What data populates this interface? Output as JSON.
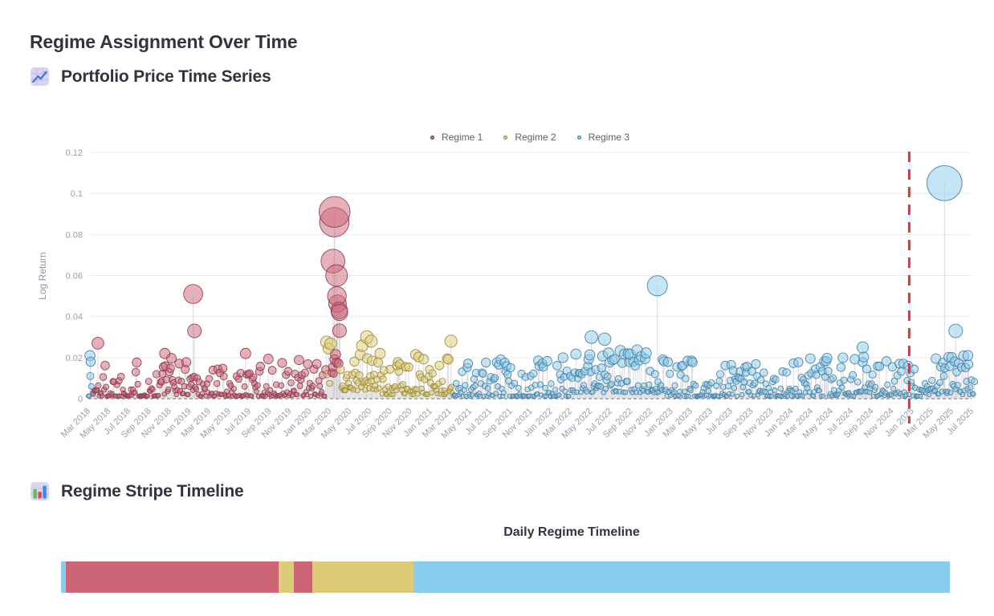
{
  "page": {
    "title": "Regime Assignment Over Time"
  },
  "sections": [
    {
      "heading": "Portfolio Price Time Series",
      "icon": "chart-increasing"
    },
    {
      "heading": "Regime Stripe Timeline",
      "icon": "bar-chart"
    }
  ],
  "colors": {
    "regime1": "#CC6677",
    "regime2": "#DDCC77",
    "regime3": "#88CCEE",
    "split_line": "#F42C2C",
    "heading_text": "#31333F",
    "axis_text": "#9A9CA9"
  },
  "chart_data": [
    {
      "type": "scatter",
      "title": "Portfolio Price Time Series",
      "ylabel": "Log Return",
      "xlabel": "",
      "grid": true,
      "legend_position": "top-center",
      "legend": [
        "Regime 1",
        "Regime 2",
        "Regime 3"
      ],
      "y_ticks": [
        0,
        0.02,
        0.04,
        0.06,
        0.08,
        0.1,
        0.12
      ],
      "y_tick_labels": [
        "0",
        "0.02",
        "0.04",
        "0.06",
        "0.08",
        "0.1",
        "0.12"
      ],
      "ylim": [
        0,
        0.125
      ],
      "x_ticks": [
        "Mar 2018",
        "May 2018",
        "Jul 2018",
        "Sep 2018",
        "Nov 2018",
        "Jan 2019",
        "Mar 2019",
        "May 2019",
        "Jul 2019",
        "Sep 2019",
        "Nov 2019",
        "Jan 2020",
        "Mar 2020",
        "May 2020",
        "Jul 2020",
        "Sep 2020",
        "Nov 2020",
        "Jan 2021",
        "Mar 2021",
        "May 2021",
        "Jul 2021",
        "Sep 2021",
        "Nov 2021",
        "Jan 2022",
        "Mar 2022",
        "May 2022",
        "Jul 2022",
        "Sep 2022",
        "Nov 2022",
        "Jan 2023",
        "Mar 2023",
        "May 2023",
        "Jul 2023",
        "Sep 2023",
        "Nov 2023",
        "Jan 2024",
        "Mar 2024",
        "May 2024",
        "Jul 2024",
        "Sep 2024",
        "Nov 2024",
        "Jan 2025",
        "Mar 2025",
        "May 2025",
        "Jul 2025"
      ],
      "x_range": [
        "2018-03-01",
        "2025-07-10"
      ],
      "x_axis": {
        "first_tick": "2018-03-01",
        "last_tick": "2025-07-01"
      },
      "series": [
        {
          "name": "Regime 1",
          "color": "#CC6677",
          "stroke": "#8E3B50"
        },
        {
          "name": "Regime 2",
          "color": "#DDCC77",
          "stroke": "#9C8C3A"
        },
        {
          "name": "Regime 3",
          "color": "#88CCEE",
          "stroke": "#4E7E9E"
        }
      ],
      "marker": {
        "shape": "circle",
        "size_by": "value",
        "fill_opacity": 0.5
      },
      "stem_lines": true,
      "zero_line": {
        "y": 0,
        "style": "dashed",
        "color": "#4A4B52"
      },
      "split_line": {
        "date": "2024-12-24",
        "style": "dashed",
        "color": "#F42C2C"
      },
      "regime_segments": [
        {
          "regime": 3,
          "start": "2018-03-01",
          "end": "2018-03-14"
        },
        {
          "regime": 1,
          "start": "2018-03-14",
          "end": "2020-02-21"
        },
        {
          "regime": 2,
          "start": "2020-02-21",
          "end": "2020-03-06"
        },
        {
          "regime": 1,
          "start": "2020-03-06",
          "end": "2020-04-03"
        },
        {
          "regime": 2,
          "start": "2020-04-03",
          "end": "2021-03-10"
        },
        {
          "regime": 3,
          "start": "2021-03-10",
          "end": "2025-07-10"
        }
      ],
      "baseline": {
        "min": 0.0012,
        "max": 0.02
      },
      "volatility_windows": [
        {
          "start": "2018-10-01",
          "end": "2019-01-31",
          "min": 0.002,
          "max": 0.021
        },
        {
          "start": "2020-02-21",
          "end": "2020-03-06",
          "min": 0.004,
          "max": 0.028
        },
        {
          "start": "2020-03-06",
          "end": "2020-04-03",
          "min": 0.012,
          "max": 0.048
        },
        {
          "start": "2020-04-03",
          "end": "2020-08-01",
          "min": 0.004,
          "max": 0.026
        },
        {
          "start": "2020-08-01",
          "end": "2021-03-10",
          "min": 0.002,
          "max": 0.022
        },
        {
          "start": "2022-03-01",
          "end": "2022-12-20",
          "min": 0.003,
          "max": 0.025
        },
        {
          "start": "2024-07-15",
          "end": "2024-09-05",
          "min": 0.003,
          "max": 0.022
        },
        {
          "start": "2025-03-01",
          "end": "2025-07-10",
          "min": 0.002,
          "max": 0.022
        }
      ],
      "spikes": [
        {
          "date": "2018-03-06",
          "value": 0.021,
          "regime": 3
        },
        {
          "date": "2018-03-08",
          "value": 0.018,
          "regime": 3
        },
        {
          "date": "2018-03-30",
          "value": 0.027,
          "regime": 1
        },
        {
          "date": "2018-10-19",
          "value": 0.022,
          "regime": 1
        },
        {
          "date": "2019-01-13",
          "value": 0.051,
          "regime": 1
        },
        {
          "date": "2019-01-17",
          "value": 0.033,
          "regime": 1
        },
        {
          "date": "2019-06-21",
          "value": 0.022,
          "regime": 1
        },
        {
          "date": "2020-03-12",
          "value": 0.067,
          "regime": 1
        },
        {
          "date": "2020-03-16",
          "value": 0.086,
          "regime": 1
        },
        {
          "date": "2020-03-17",
          "value": 0.091,
          "regime": 1
        },
        {
          "date": "2020-03-23",
          "value": 0.06,
          "regime": 1
        },
        {
          "date": "2020-03-24",
          "value": 0.05,
          "regime": 1
        },
        {
          "date": "2020-03-31",
          "value": 0.043,
          "regime": 1
        },
        {
          "date": "2020-04-01",
          "value": 0.042,
          "regime": 1
        },
        {
          "date": "2020-06-23",
          "value": 0.03,
          "regime": 2
        },
        {
          "date": "2020-07-06",
          "value": 0.028,
          "regime": 2
        },
        {
          "date": "2021-03-05",
          "value": 0.028,
          "regime": 2
        },
        {
          "date": "2022-05-05",
          "value": 0.03,
          "regime": 3
        },
        {
          "date": "2022-06-14",
          "value": 0.029,
          "regime": 3
        },
        {
          "date": "2022-11-21",
          "value": 0.055,
          "regime": 3
        },
        {
          "date": "2024-08-05",
          "value": 0.025,
          "regime": 3
        },
        {
          "date": "2025-04-10",
          "value": 0.105,
          "regime": 3
        },
        {
          "date": "2025-05-14",
          "value": 0.033,
          "regime": 3
        },
        {
          "date": "2025-06-20",
          "value": 0.021,
          "regime": 3
        }
      ]
    },
    {
      "type": "timeline-stripe",
      "title": "Daily Regime Timeline",
      "segments": [
        {
          "regime": 3,
          "fraction": 0.005
        },
        {
          "regime": 1,
          "fraction": 0.24
        },
        {
          "regime": 2,
          "fraction": 0.017
        },
        {
          "regime": 1,
          "fraction": 0.021
        },
        {
          "regime": 2,
          "fraction": 0.114
        },
        {
          "regime": 3,
          "fraction": 0.603
        }
      ],
      "colors": {
        "1": "#CC6677",
        "2": "#DDCC77",
        "3": "#88CCEE"
      }
    }
  ]
}
